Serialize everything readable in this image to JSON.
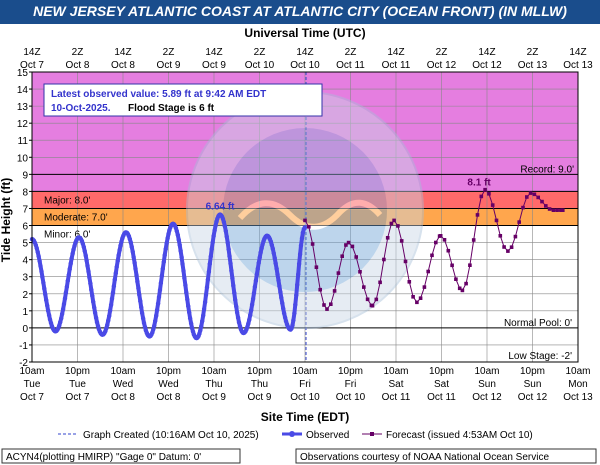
{
  "title": "NEW JERSEY ATLANTIC COAST AT ATLANTIC CITY (OCEAN FRONT) (IN MLLW)",
  "top_axis_label": "Universal Time (UTC)",
  "bottom_axis_label": "Site Time (EDT)",
  "y_axis_label": "Tide Height (ft)",
  "top_ticks": [
    {
      "l1": "14Z",
      "l2": "Oct 7"
    },
    {
      "l1": "2Z",
      "l2": "Oct 8"
    },
    {
      "l1": "14Z",
      "l2": "Oct 8"
    },
    {
      "l1": "2Z",
      "l2": "Oct 9"
    },
    {
      "l1": "14Z",
      "l2": "Oct 9"
    },
    {
      "l1": "2Z",
      "l2": "Oct 10"
    },
    {
      "l1": "14Z",
      "l2": "Oct 10"
    },
    {
      "l1": "2Z",
      "l2": "Oct 11"
    },
    {
      "l1": "14Z",
      "l2": "Oct 11"
    },
    {
      "l1": "2Z",
      "l2": "Oct 12"
    },
    {
      "l1": "14Z",
      "l2": "Oct 12"
    },
    {
      "l1": "2Z",
      "l2": "Oct 13"
    },
    {
      "l1": "14Z",
      "l2": "Oct 13"
    }
  ],
  "bottom_ticks": [
    {
      "l1": "10am",
      "l2": "Tue",
      "l3": "Oct 7"
    },
    {
      "l1": "10pm",
      "l2": "Tue",
      "l3": "Oct 7"
    },
    {
      "l1": "10am",
      "l2": "Wed",
      "l3": "Oct 8"
    },
    {
      "l1": "10pm",
      "l2": "Wed",
      "l3": "Oct 8"
    },
    {
      "l1": "10am",
      "l2": "Thu",
      "l3": "Oct 9"
    },
    {
      "l1": "10pm",
      "l2": "Thu",
      "l3": "Oct 9"
    },
    {
      "l1": "10am",
      "l2": "Fri",
      "l3": "Oct 10"
    },
    {
      "l1": "10pm",
      "l2": "Fri",
      "l3": "Oct 10"
    },
    {
      "l1": "10am",
      "l2": "Sat",
      "l3": "Oct 11"
    },
    {
      "l1": "10pm",
      "l2": "Sat",
      "l3": "Oct 11"
    },
    {
      "l1": "10am",
      "l2": "Sun",
      "l3": "Oct 12"
    },
    {
      "l1": "10pm",
      "l2": "Sun",
      "l3": "Oct 12"
    },
    {
      "l1": "10am",
      "l2": "Mon",
      "l3": "Oct 13"
    }
  ],
  "info_box": {
    "line1": "Latest observed value: 5.89 ft at 9:42 AM EDT",
    "date": "10-Oct-2025.",
    "flood": "Flood Stage is 6 ft"
  },
  "stage_labels": {
    "record": "Record: 9.0'",
    "major": "Major: 8.0'",
    "moderate": "Moderate: 7.0'",
    "minor": "Minor: 6.0'",
    "normal_pool": "Normal Pool: 0'",
    "low_stage": "Low Stage: -2'"
  },
  "peak_labels": {
    "observed": "6.64 ft",
    "forecast": "8.1 ft"
  },
  "legend": {
    "graph_created": "Graph Created (10:16AM Oct 10, 2025)",
    "observed": "Observed",
    "forecast": "Forecast (issued 4:53AM Oct 10)"
  },
  "footer_left": "ACYN4(plotting HMIRP) \"Gage 0\" Datum: 0'",
  "footer_right": "Observations courtesy of NOAA National Ocean Service",
  "colors": {
    "header": "#1a4d8c",
    "major_band": "#e57ee0",
    "moderate_band": "#ff6a6a",
    "minor_band": "#ffa64d",
    "observed": "#4a4ae6",
    "forecast": "#660066"
  },
  "chart_data": {
    "type": "line",
    "x_units": "hours since Tue Oct 7 10am EDT",
    "ylim": [
      -2,
      15
    ],
    "xlim": [
      0,
      144
    ],
    "thresholds": {
      "record": 9.0,
      "major": 8.0,
      "moderate": 7.0,
      "minor": 6.0,
      "normal_pool": 0,
      "low_stage": -2
    },
    "graph_created_x": 72.27,
    "series": [
      {
        "name": "Observed",
        "x": [
          0.0,
          6.2,
          12.4,
          18.6,
          24.8,
          31.0,
          37.2,
          43.4,
          49.6,
          55.8,
          62.0,
          68.2,
          72.0
        ],
        "y": [
          5.2,
          -0.2,
          5.3,
          -0.4,
          5.6,
          -0.5,
          6.1,
          -0.6,
          6.64,
          -0.3,
          5.4,
          -0.1,
          5.89
        ]
      },
      {
        "name": "Forecast",
        "x": [
          72.0,
          77.8,
          83.5,
          89.8,
          95.5,
          101.5,
          107.8,
          113.5,
          119.5,
          125.5,
          131.5,
          137.5,
          140.0
        ],
        "y": [
          6.3,
          1.1,
          5.0,
          1.3,
          6.3,
          1.5,
          5.4,
          2.2,
          8.1,
          4.5,
          7.9,
          6.9,
          6.9
        ]
      }
    ]
  }
}
